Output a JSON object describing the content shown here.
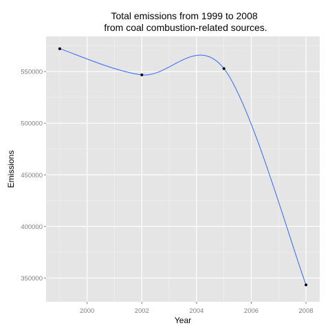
{
  "chart_data": {
    "type": "line",
    "title": "Total emissions from 1999 to 2008\nfrom coal combustion-related sources.",
    "xlabel": "Year",
    "ylabel": "Emissions",
    "x": [
      1999,
      2002,
      2005,
      2008
    ],
    "series": [
      {
        "values": [
          572126,
          546789,
          552881,
          343432
        ]
      }
    ],
    "xlim": [
      1998.5,
      2008.5
    ],
    "ylim": [
      327000,
      584000
    ],
    "xticks": [
      2000,
      2002,
      2004,
      2006,
      2008
    ],
    "yticks": [
      350000,
      400000,
      450000,
      500000,
      550000
    ],
    "xtick_labels": [
      "2000",
      "2002",
      "2004",
      "2006",
      "2008"
    ],
    "ytick_labels": [
      "350000",
      "400000",
      "450000",
      "500000",
      "550000"
    ],
    "grid": true,
    "smooth": true,
    "colors": {
      "panel": "#e5e5e5",
      "grid_major": "#ffffff",
      "grid_minor": "#f2f2f2",
      "line": "#3366ff",
      "points": "#000000"
    }
  }
}
